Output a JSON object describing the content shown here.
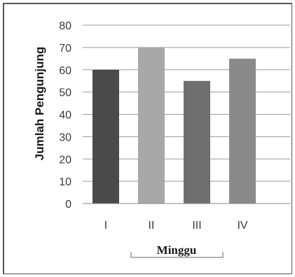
{
  "chart_data": {
    "type": "bar",
    "categories": [
      "I",
      "II",
      "III",
      "IV"
    ],
    "values": [
      60,
      70,
      55,
      65
    ],
    "colors": [
      "#4a4a4a",
      "#a8a8a8",
      "#6f6f6f",
      "#8a8a8a"
    ],
    "title": "",
    "xlabel": "Minggu",
    "ylabel": "Jumlah Pengunjung",
    "ylim": [
      0,
      80
    ],
    "yticks": [
      0,
      10,
      20,
      30,
      40,
      50,
      60,
      70,
      80
    ],
    "grid": true,
    "legend": "none"
  }
}
